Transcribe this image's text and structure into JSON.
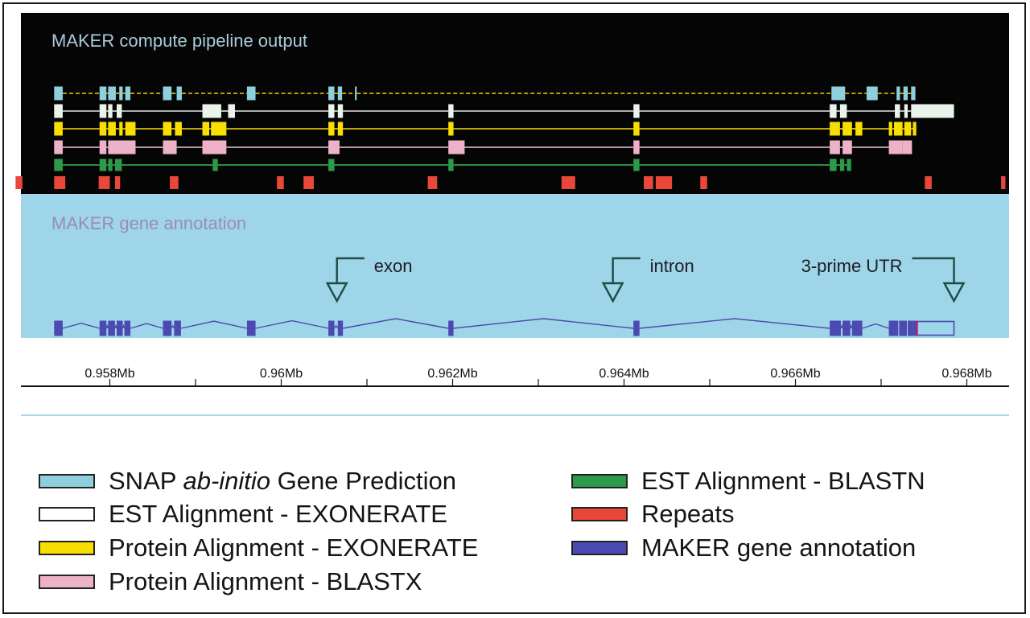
{
  "top_panel": {
    "title": "MAKER compute pipeline output",
    "tracks": [
      {
        "name": "snap",
        "color": "#8ecfdd",
        "connector": "dashed",
        "connector_color": "#f2d000",
        "blocks": [
          [
            0.95735,
            0.95745
          ],
          [
            0.95788,
            0.95796
          ],
          [
            0.95798,
            0.95807
          ],
          [
            0.95811,
            0.95815
          ],
          [
            0.95818,
            0.95824
          ],
          [
            0.95862,
            0.95872
          ],
          [
            0.95878,
            0.95884
          ],
          [
            0.9596,
            0.9597
          ],
          [
            0.96055,
            0.96062
          ],
          [
            0.96066,
            0.96071
          ],
          [
            0.96086,
            0.96088
          ],
          [
            0.96642,
            0.96658
          ],
          [
            0.96683,
            0.96696
          ],
          [
            0.96718,
            0.96722
          ],
          [
            0.96726,
            0.96731
          ],
          [
            0.96735,
            0.9674
          ]
        ]
      },
      {
        "name": "exonerate_est",
        "color": "#eaf4ea",
        "connector": "solid",
        "connector_color": "#e8e8e8",
        "blocks": [
          [
            0.95735,
            0.95745
          ],
          [
            0.95788,
            0.95796
          ],
          [
            0.95798,
            0.95803
          ],
          [
            0.95808,
            0.95814
          ],
          [
            0.95908,
            0.9593
          ],
          [
            0.95938,
            0.95946
          ],
          [
            0.96055,
            0.96062
          ],
          [
            0.96066,
            0.96072
          ],
          [
            0.96195,
            0.96201
          ],
          [
            0.96411,
            0.96418
          ],
          [
            0.9664,
            0.96648
          ],
          [
            0.96652,
            0.9666
          ],
          [
            0.96716,
            0.96722
          ],
          [
            0.96727,
            0.96731
          ],
          [
            0.96735,
            0.96785
          ]
        ]
      },
      {
        "name": "exonerate_protein",
        "color": "#f8df00",
        "connector": "solid",
        "connector_color": "#f8df00",
        "blocks": [
          [
            0.95735,
            0.95745
          ],
          [
            0.95788,
            0.95796
          ],
          [
            0.95798,
            0.95807
          ],
          [
            0.95811,
            0.95815
          ],
          [
            0.95818,
            0.9583
          ],
          [
            0.95862,
            0.95872
          ],
          [
            0.95876,
            0.95884
          ],
          [
            0.95908,
            0.95916
          ],
          [
            0.95918,
            0.95936
          ],
          [
            0.96055,
            0.96062
          ],
          [
            0.96066,
            0.96072
          ],
          [
            0.96195,
            0.96201
          ],
          [
            0.96411,
            0.96418
          ],
          [
            0.9664,
            0.96652
          ],
          [
            0.96655,
            0.96666
          ],
          [
            0.9667,
            0.96678
          ],
          [
            0.96709,
            0.96713
          ],
          [
            0.96715,
            0.96725
          ],
          [
            0.96727,
            0.96735
          ],
          [
            0.96737,
            0.96741
          ]
        ]
      },
      {
        "name": "blastx",
        "color": "#eeb2c8",
        "connector": "solid",
        "connector_color": "#e8c9d4",
        "blocks": [
          [
            0.95735,
            0.95745
          ],
          [
            0.95788,
            0.95796
          ],
          [
            0.95798,
            0.9583
          ],
          [
            0.95862,
            0.95878
          ],
          [
            0.95908,
            0.95936
          ],
          [
            0.96055,
            0.96068
          ],
          [
            0.96195,
            0.96214
          ],
          [
            0.96411,
            0.96418
          ],
          [
            0.9664,
            0.96652
          ],
          [
            0.96655,
            0.96666
          ],
          [
            0.96709,
            0.96725
          ],
          [
            0.96725,
            0.96736
          ]
        ]
      },
      {
        "name": "blastn",
        "color": "#2c9a4a",
        "connector": "solid",
        "connector_color": "#3db85a",
        "blocks": [
          [
            0.95735,
            0.95745
          ],
          [
            0.95788,
            0.95796
          ],
          [
            0.95798,
            0.95803
          ],
          [
            0.95806,
            0.95814
          ],
          [
            0.9592,
            0.95926
          ],
          [
            0.96055,
            0.96062
          ],
          [
            0.96195,
            0.96201
          ],
          [
            0.96411,
            0.96418
          ],
          [
            0.9664,
            0.96648
          ],
          [
            0.96652,
            0.96657
          ],
          [
            0.9666,
            0.96665
          ]
        ]
      },
      {
        "name": "repeats",
        "color": "#e8473a",
        "connector": "none",
        "blocks": [
          [
            0.9569,
            0.95698
          ],
          [
            0.95735,
            0.95748
          ],
          [
            0.95787,
            0.958
          ],
          [
            0.95806,
            0.95812
          ],
          [
            0.9587,
            0.9588
          ],
          [
            0.95995,
            0.96003
          ],
          [
            0.96026,
            0.96038
          ],
          [
            0.96171,
            0.96182
          ],
          [
            0.96327,
            0.96343
          ],
          [
            0.96423,
            0.96434
          ],
          [
            0.96437,
            0.96456
          ],
          [
            0.96489,
            0.96497
          ],
          [
            0.96751,
            0.96759
          ],
          [
            0.9684,
            0.96845
          ]
        ]
      }
    ]
  },
  "gene_panel": {
    "title": "MAKER gene annotation",
    "color": "#4a4ab0",
    "utr_color": "#c21a70",
    "exons": [
      [
        0.95735,
        0.95745
      ],
      [
        0.95788,
        0.95796
      ],
      [
        0.95798,
        0.95806
      ],
      [
        0.95808,
        0.95815
      ],
      [
        0.95817,
        0.95824
      ],
      [
        0.95862,
        0.95872
      ],
      [
        0.95875,
        0.95883
      ],
      [
        0.9596,
        0.9597
      ],
      [
        0.96055,
        0.96062
      ],
      [
        0.96066,
        0.96072
      ],
      [
        0.96195,
        0.96201
      ],
      [
        0.96411,
        0.96418
      ],
      [
        0.9664,
        0.96653
      ],
      [
        0.96655,
        0.96664
      ],
      [
        0.96666,
        0.96678
      ],
      [
        0.96709,
        0.9672
      ],
      [
        0.96721,
        0.9673
      ],
      [
        0.96731,
        0.96737
      ],
      [
        0.96737,
        0.96742
      ]
    ],
    "utr": [
      0.96742,
      0.96785
    ],
    "callouts": [
      {
        "label": "exon",
        "at": 0.96065
      },
      {
        "label": "intron",
        "at": 0.96387
      },
      {
        "label": "3-prime UTR",
        "at": 0.96785
      }
    ]
  },
  "axis": {
    "start": 0.9569,
    "end": 0.9686,
    "ticks": [
      0.958,
      0.959,
      0.96,
      0.961,
      0.962,
      0.963,
      0.964,
      0.965,
      0.966,
      0.967,
      0.968
    ],
    "labeled_ticks": [
      {
        "value": 0.958,
        "label": "0.958Mb"
      },
      {
        "value": 0.96,
        "label": "0.96Mb"
      },
      {
        "value": 0.962,
        "label": "0.962Mb"
      },
      {
        "value": 0.964,
        "label": "0.964Mb"
      },
      {
        "value": 0.966,
        "label": "0.966Mb"
      },
      {
        "value": 0.968,
        "label": "0.968Mb"
      }
    ]
  },
  "legend": {
    "items": [
      {
        "label_pre": "SNAP ",
        "label_italic": "ab-initio",
        "label_post": " Gene Prediction",
        "fill": "#8ecfdd"
      },
      {
        "label_pre": "EST Alignment - EXONERATE",
        "label_italic": "",
        "label_post": "",
        "fill": "#ffffff"
      },
      {
        "label_pre": "Protein Alignment - EXONERATE",
        "label_italic": "",
        "label_post": "",
        "fill": "#f8df00"
      },
      {
        "label_pre": "Protein Alignment - BLASTX",
        "label_italic": "",
        "label_post": "",
        "fill": "#eeb2c8"
      },
      {
        "label_pre": "EST Alignment - BLASTN",
        "label_italic": "",
        "label_post": "",
        "fill": "#2c9a4a"
      },
      {
        "label_pre": "Repeats",
        "label_italic": "",
        "label_post": "",
        "fill": "#e8473a"
      },
      {
        "label_pre": "MAKER gene annotation",
        "label_italic": "",
        "label_post": "",
        "fill": "#4a4ab0"
      }
    ]
  }
}
